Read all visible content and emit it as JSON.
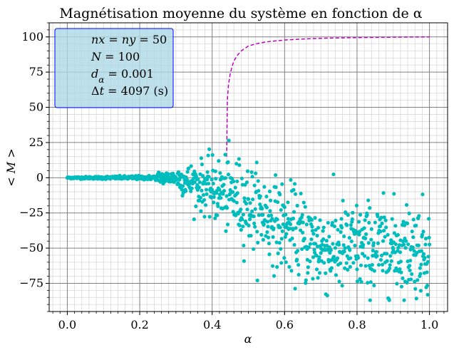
{
  "chart_data": {
    "type": "scatter",
    "title": "Magnétisation moyenne du système en fonction de α",
    "xlabel": "α",
    "ylabel": "< M >",
    "xlim": [
      -0.05,
      1.05
    ],
    "ylim": [
      -95,
      110
    ],
    "x_ticks": [
      "0.0",
      "0.2",
      "0.4",
      "0.6",
      "0.8",
      "1.0"
    ],
    "x_tick_values": [
      0.0,
      0.2,
      0.4,
      0.6,
      0.8,
      1.0
    ],
    "y_ticks": [
      "100",
      "75",
      "50",
      "25",
      "0",
      "−25",
      "−50",
      "−75"
    ],
    "y_tick_values": [
      100,
      75,
      50,
      25,
      0,
      -25,
      -50,
      -75
    ],
    "grid": true,
    "minor_grid": true,
    "colors": {
      "scatter": "#00bdbd",
      "curve": "#bf00bf",
      "legend_bg": "#add8e6",
      "legend_border": "#0000ff"
    },
    "legend": {
      "placement": "top-left",
      "lines": [
        "nx = ny = 50",
        "N = 100",
        "d_α = 0.001",
        "Δt = 4097 (s)"
      ]
    },
    "scatter_description": {
      "x_range": [
        0.0,
        1.0
      ],
      "count": 1001,
      "near_zero_until": 0.3,
      "spread_from": 0.3,
      "approx_mean_at_end": -50,
      "approx_min": -87,
      "approx_max": 34
    },
    "curve": {
      "style": "dashed",
      "x": [
        0.44,
        0.442,
        0.445,
        0.45,
        0.455,
        0.46,
        0.47,
        0.48,
        0.5,
        0.52,
        0.55,
        0.6,
        0.65,
        0.7,
        0.8,
        0.9,
        1.0
      ],
      "y": [
        15,
        55,
        66,
        74,
        79,
        83,
        87,
        90,
        93.5,
        95,
        96.5,
        97.8,
        98.5,
        99,
        99.5,
        99.8,
        100
      ]
    }
  }
}
